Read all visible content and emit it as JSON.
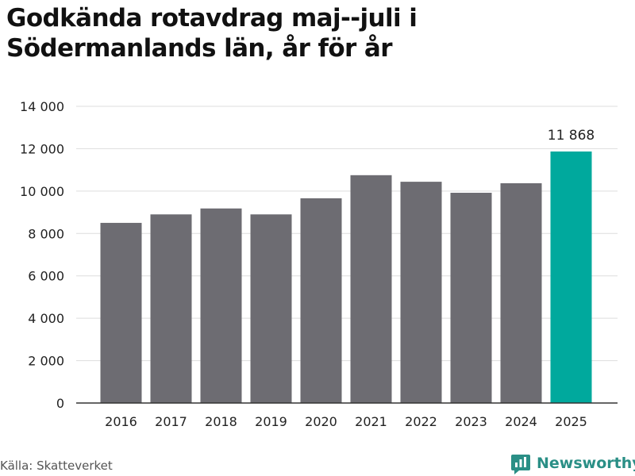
{
  "title": "Godkända rotavdrag maj--juli i Södermanlands län, år för år",
  "source": "Källa: Skatteverket",
  "brand": {
    "name": "Newsworthy",
    "icon": "newsworthy-logo-icon",
    "color": "#2a8f86"
  },
  "colors": {
    "bar": "#6d6c72",
    "highlight": "#00a99d",
    "grid": "#dddddd",
    "axis": "#333333"
  },
  "chart_data": {
    "type": "bar",
    "title": "Godkända rotavdrag maj--juli i Södermanlands län, år för år",
    "xlabel": "",
    "ylabel": "",
    "categories": [
      "2016",
      "2017",
      "2018",
      "2019",
      "2020",
      "2021",
      "2022",
      "2023",
      "2024",
      "2025"
    ],
    "values": [
      8500,
      8900,
      9180,
      8900,
      9660,
      10750,
      10440,
      9920,
      10370,
      11868
    ],
    "highlight_index": 9,
    "highlight_label": "11 868",
    "ylim": [
      0,
      14000
    ],
    "yticks": [
      0,
      2000,
      4000,
      6000,
      8000,
      10000,
      12000,
      14000
    ],
    "ytick_labels": [
      "0",
      "2 000",
      "4 000",
      "6 000",
      "8 000",
      "10 000",
      "12 000",
      "14 000"
    ],
    "grid": true,
    "legend": "none"
  }
}
